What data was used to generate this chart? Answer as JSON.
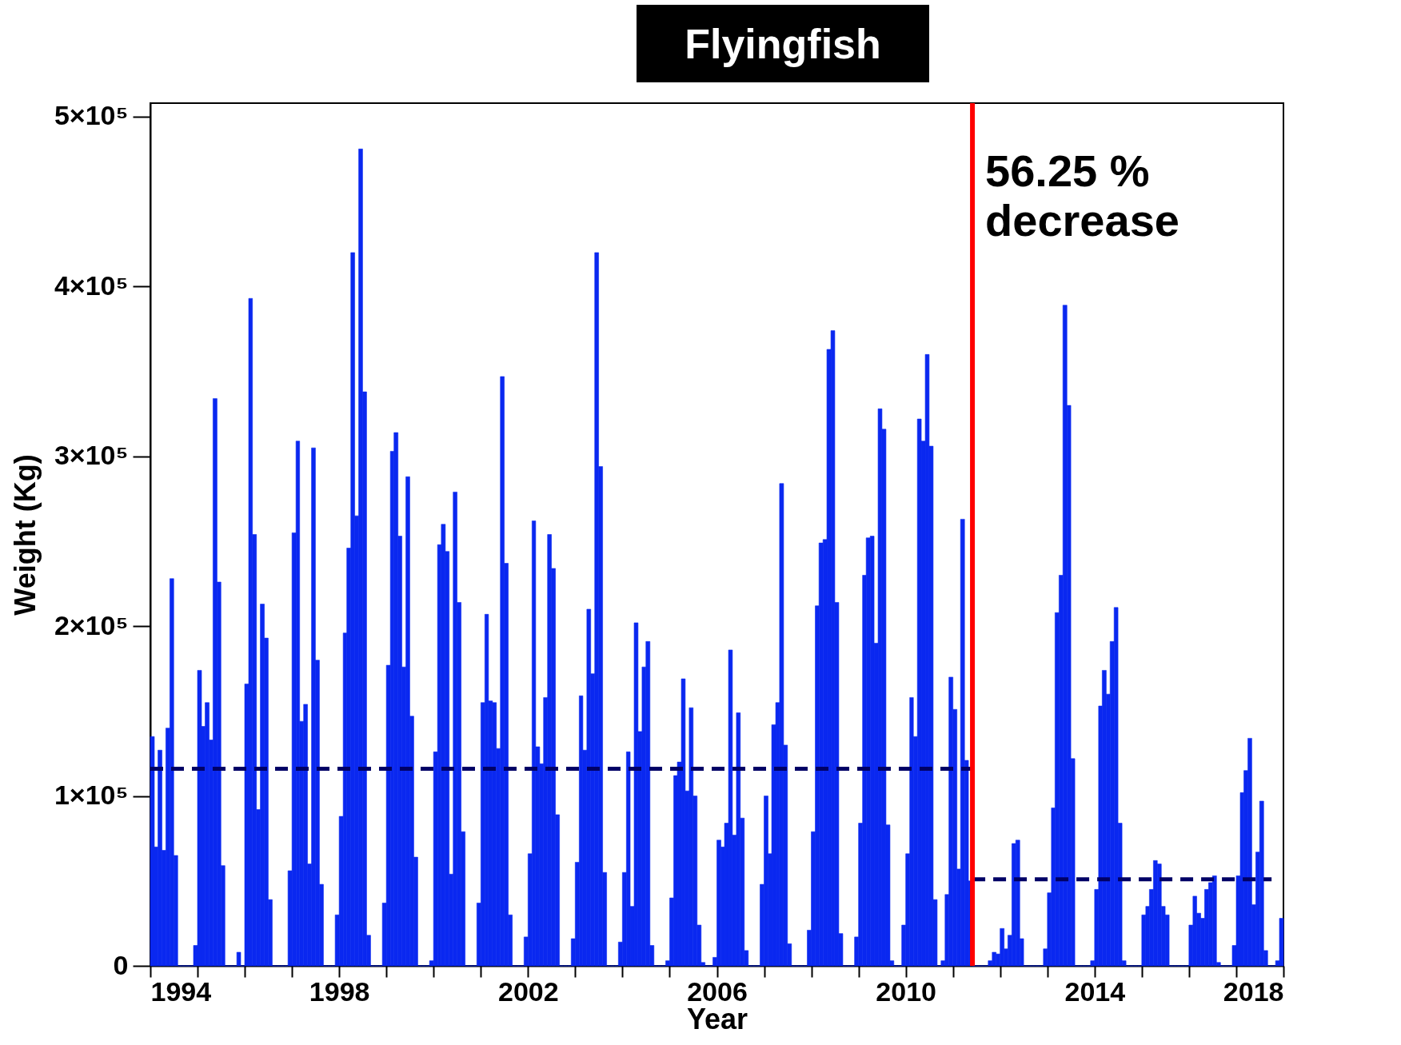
{
  "chart_data": {
    "type": "bar",
    "title": "Flyingfish",
    "xlabel": "Year",
    "ylabel": "Weight (Kg)",
    "x": [
      "1994-01",
      "1994-02",
      "1994-03",
      "1994-04",
      "1994-05",
      "1994-06",
      "1994-07",
      "1994-08",
      "1994-09",
      "1994-10",
      "1994-11",
      "1994-12",
      "1995-01",
      "1995-02",
      "1995-03",
      "1995-04",
      "1995-05",
      "1995-06",
      "1995-07",
      "1995-08",
      "1995-09",
      "1995-10",
      "1995-11",
      "1995-12",
      "1996-01",
      "1996-02",
      "1996-03",
      "1996-04",
      "1996-05",
      "1996-06",
      "1996-07",
      "1996-08",
      "1996-09",
      "1996-10",
      "1996-11",
      "1996-12",
      "1997-01",
      "1997-02",
      "1997-03",
      "1997-04",
      "1997-05",
      "1997-06",
      "1997-07",
      "1997-08",
      "1997-09",
      "1997-10",
      "1997-11",
      "1997-12",
      "1998-01",
      "1998-02",
      "1998-03",
      "1998-04",
      "1998-05",
      "1998-06",
      "1998-07",
      "1998-08",
      "1998-09",
      "1998-10",
      "1998-11",
      "1998-12",
      "1999-01",
      "1999-02",
      "1999-03",
      "1999-04",
      "1999-05",
      "1999-06",
      "1999-07",
      "1999-08",
      "1999-09",
      "1999-10",
      "1999-11",
      "1999-12",
      "2000-01",
      "2000-02",
      "2000-03",
      "2000-04",
      "2000-05",
      "2000-06",
      "2000-07",
      "2000-08",
      "2000-09",
      "2000-10",
      "2000-11",
      "2000-12",
      "2001-01",
      "2001-02",
      "2001-03",
      "2001-04",
      "2001-05",
      "2001-06",
      "2001-07",
      "2001-08",
      "2001-09",
      "2001-10",
      "2001-11",
      "2001-12",
      "2002-01",
      "2002-02",
      "2002-03",
      "2002-04",
      "2002-05",
      "2002-06",
      "2002-07",
      "2002-08",
      "2002-09",
      "2002-10",
      "2002-11",
      "2002-12",
      "2003-01",
      "2003-02",
      "2003-03",
      "2003-04",
      "2003-05",
      "2003-06",
      "2003-07",
      "2003-08",
      "2003-09",
      "2003-10",
      "2003-11",
      "2003-12",
      "2004-01",
      "2004-02",
      "2004-03",
      "2004-04",
      "2004-05",
      "2004-06",
      "2004-07",
      "2004-08",
      "2004-09",
      "2004-10",
      "2004-11",
      "2004-12",
      "2005-01",
      "2005-02",
      "2005-03",
      "2005-04",
      "2005-05",
      "2005-06",
      "2005-07",
      "2005-08",
      "2005-09",
      "2005-10",
      "2005-11",
      "2005-12",
      "2006-01",
      "2006-02",
      "2006-03",
      "2006-04",
      "2006-05",
      "2006-06",
      "2006-07",
      "2006-08",
      "2006-09",
      "2006-10",
      "2006-11",
      "2006-12",
      "2007-01",
      "2007-02",
      "2007-03",
      "2007-04",
      "2007-05",
      "2007-06",
      "2007-07",
      "2007-08",
      "2007-09",
      "2007-10",
      "2007-11",
      "2007-12",
      "2008-01",
      "2008-02",
      "2008-03",
      "2008-04",
      "2008-05",
      "2008-06",
      "2008-07",
      "2008-08",
      "2008-09",
      "2008-10",
      "2008-11",
      "2008-12",
      "2009-01",
      "2009-02",
      "2009-03",
      "2009-04",
      "2009-05",
      "2009-06",
      "2009-07",
      "2009-08",
      "2009-09",
      "2009-10",
      "2009-11",
      "2009-12",
      "2010-01",
      "2010-02",
      "2010-03",
      "2010-04",
      "2010-05",
      "2010-06",
      "2010-07",
      "2010-08",
      "2010-09",
      "2010-10",
      "2010-11",
      "2010-12",
      "2011-01",
      "2011-02",
      "2011-03",
      "2011-04",
      "2011-05",
      "2011-06",
      "2011-07",
      "2011-08",
      "2011-09",
      "2011-10",
      "2011-11",
      "2011-12",
      "2012-01",
      "2012-02",
      "2012-03",
      "2012-04",
      "2012-05",
      "2012-06",
      "2012-07",
      "2012-08",
      "2012-09",
      "2012-10",
      "2012-11",
      "2012-12",
      "2013-01",
      "2013-02",
      "2013-03",
      "2013-04",
      "2013-05",
      "2013-06",
      "2013-07",
      "2013-08",
      "2013-09",
      "2013-10",
      "2013-11",
      "2013-12",
      "2014-01",
      "2014-02",
      "2014-03",
      "2014-04",
      "2014-05",
      "2014-06",
      "2014-07",
      "2014-08",
      "2014-09",
      "2014-10",
      "2014-11",
      "2014-12",
      "2015-01",
      "2015-02",
      "2015-03",
      "2015-04",
      "2015-05",
      "2015-06",
      "2015-07",
      "2015-08",
      "2015-09",
      "2015-10",
      "2015-11",
      "2015-12",
      "2016-01",
      "2016-02",
      "2016-03",
      "2016-04",
      "2016-05",
      "2016-06",
      "2016-07",
      "2016-08",
      "2016-09",
      "2016-10",
      "2016-11",
      "2016-12",
      "2017-01",
      "2017-02",
      "2017-03",
      "2017-04",
      "2017-05",
      "2017-06",
      "2017-07",
      "2017-08",
      "2017-09",
      "2017-10",
      "2017-11",
      "2017-12"
    ],
    "series": [
      {
        "color": "#0a28f0",
        "values": [
          135000,
          70000,
          127000,
          68000,
          140000,
          228000,
          65000,
          0,
          0,
          0,
          0,
          12000,
          174000,
          141000,
          155000,
          133000,
          334000,
          226000,
          59000,
          0,
          0,
          0,
          8000,
          0,
          166000,
          393000,
          254000,
          92000,
          213000,
          193000,
          39000,
          0,
          0,
          0,
          0,
          56000,
          255000,
          309000,
          144000,
          154000,
          60000,
          305000,
          180000,
          48000,
          0,
          0,
          0,
          30000,
          88000,
          196000,
          246000,
          420000,
          265000,
          481000,
          338000,
          18000,
          0,
          0,
          0,
          37000,
          177000,
          303000,
          314000,
          253000,
          176000,
          288000,
          147000,
          64000,
          0,
          0,
          0,
          3000,
          126000,
          248000,
          260000,
          244000,
          54000,
          279000,
          214000,
          79000,
          0,
          0,
          0,
          37000,
          155000,
          207000,
          156000,
          155000,
          128000,
          347000,
          237000,
          30000,
          0,
          0,
          0,
          17000,
          66000,
          262000,
          129000,
          119000,
          158000,
          254000,
          234000,
          89000,
          0,
          0,
          0,
          16000,
          61000,
          159000,
          127000,
          210000,
          172000,
          420000,
          294000,
          55000,
          0,
          0,
          0,
          14000,
          55000,
          126000,
          35000,
          202000,
          138000,
          176000,
          191000,
          12000,
          0,
          0,
          0,
          3000,
          40000,
          112000,
          120000,
          169000,
          103000,
          152000,
          100000,
          24000,
          2000,
          0,
          0,
          5000,
          74000,
          70000,
          84000,
          186000,
          77000,
          149000,
          87000,
          9000,
          0,
          0,
          0,
          48000,
          100000,
          66000,
          142000,
          155000,
          284000,
          130000,
          13000,
          0,
          0,
          0,
          0,
          21000,
          79000,
          212000,
          249000,
          251000,
          363000,
          374000,
          214000,
          19000,
          0,
          0,
          0,
          17000,
          84000,
          230000,
          252000,
          253000,
          190000,
          328000,
          316000,
          83000,
          3000,
          0,
          0,
          24000,
          66000,
          158000,
          135000,
          322000,
          309000,
          360000,
          306000,
          39000,
          0,
          3000,
          42000,
          170000,
          151000,
          57000,
          263000,
          121000,
          50000,
          0,
          0,
          0,
          0,
          3000,
          8000,
          7000,
          22000,
          10000,
          18000,
          72000,
          74000,
          16000,
          0,
          0,
          0,
          0,
          0,
          10000,
          43000,
          93000,
          208000,
          230000,
          389000,
          330000,
          122000,
          0,
          0,
          0,
          0,
          3000,
          45000,
          153000,
          174000,
          160000,
          191000,
          211000,
          84000,
          3000,
          0,
          0,
          0,
          0,
          30000,
          35000,
          45000,
          62000,
          60000,
          35000,
          30000,
          0,
          0,
          0,
          0,
          0,
          24000,
          41000,
          31000,
          28000,
          45000,
          49000,
          53000,
          2000,
          0,
          0,
          0,
          12000,
          53000,
          102000,
          115000,
          134000,
          36000,
          67000,
          97000,
          9000,
          0,
          0,
          3000,
          28000
        ]
      },
      {
        "type": "line",
        "color": "#000066",
        "line_style": "dashed",
        "x": [
          "1994-01",
          "2011-06"
        ],
        "values": [
          116000,
          116000
        ]
      },
      {
        "type": "line",
        "color": "#000066",
        "line_style": "dashed",
        "x": [
          "2011-06",
          "2017-10"
        ],
        "values": [
          51000,
          51000
        ]
      }
    ],
    "xlim": [
      "1994",
      "2018"
    ],
    "xticks": [
      {
        "value": "1994",
        "label": "1994"
      },
      {
        "value": "1995",
        "label": null
      },
      {
        "value": "1996",
        "label": null
      },
      {
        "value": "1997",
        "label": null
      },
      {
        "value": "1998",
        "label": "1998"
      },
      {
        "value": "1999",
        "label": null
      },
      {
        "value": "2000",
        "label": null
      },
      {
        "value": "2001",
        "label": null
      },
      {
        "value": "2002",
        "label": "2002"
      },
      {
        "value": "2003",
        "label": null
      },
      {
        "value": "2004",
        "label": null
      },
      {
        "value": "2005",
        "label": null
      },
      {
        "value": "2006",
        "label": "2006"
      },
      {
        "value": "2007",
        "label": null
      },
      {
        "value": "2008",
        "label": null
      },
      {
        "value": "2009",
        "label": null
      },
      {
        "value": "2010",
        "label": "2010"
      },
      {
        "value": "2011",
        "label": null
      },
      {
        "value": "2012",
        "label": null
      },
      {
        "value": "2013",
        "label": null
      },
      {
        "value": "2014",
        "label": "2014"
      },
      {
        "value": "2015",
        "label": null
      },
      {
        "value": "2016",
        "label": null
      },
      {
        "value": "2017",
        "label": null
      },
      {
        "value": "2018",
        "label": "2018"
      }
    ],
    "ylim": [
      0,
      508000
    ],
    "yticks": [
      0,
      {
        "value": 100000,
        "label": "1×10⁵"
      },
      {
        "value": 200000,
        "label": "2×10⁵"
      },
      {
        "value": 300000,
        "label": "3×10⁵"
      },
      {
        "value": 400000,
        "label": "4×10⁵"
      },
      {
        "value": 500000,
        "label": "5×10⁵"
      }
    ],
    "ref_lines": [
      {
        "axis": "x",
        "value": "2011-06",
        "color": "#ff0000",
        "line_style": "solid"
      }
    ],
    "annotations": [
      "56.25 %\ndecrease"
    ],
    "grid": false
  }
}
